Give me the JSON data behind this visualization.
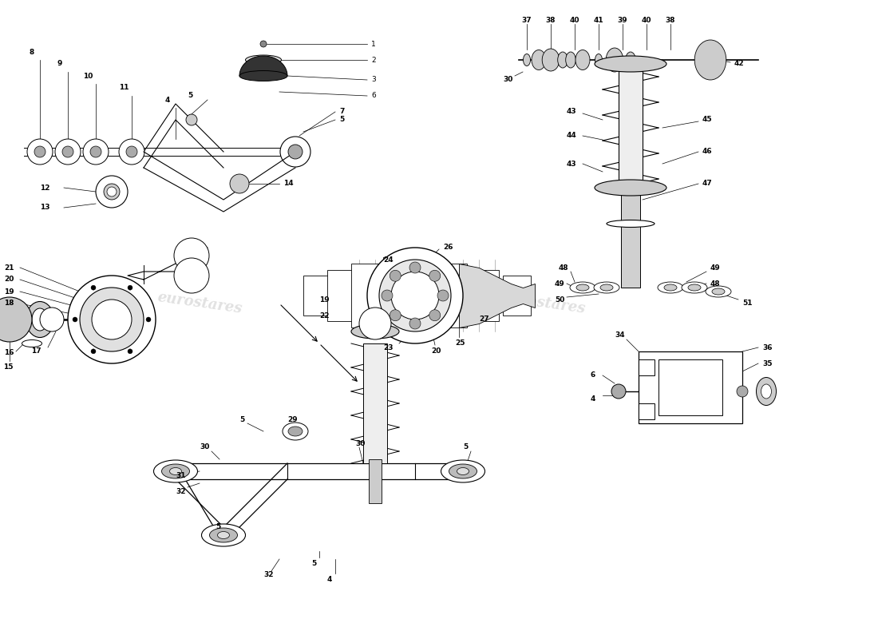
{
  "bg_color": "#ffffff",
  "watermark_color": "#cccccc",
  "line_color": "#000000"
}
